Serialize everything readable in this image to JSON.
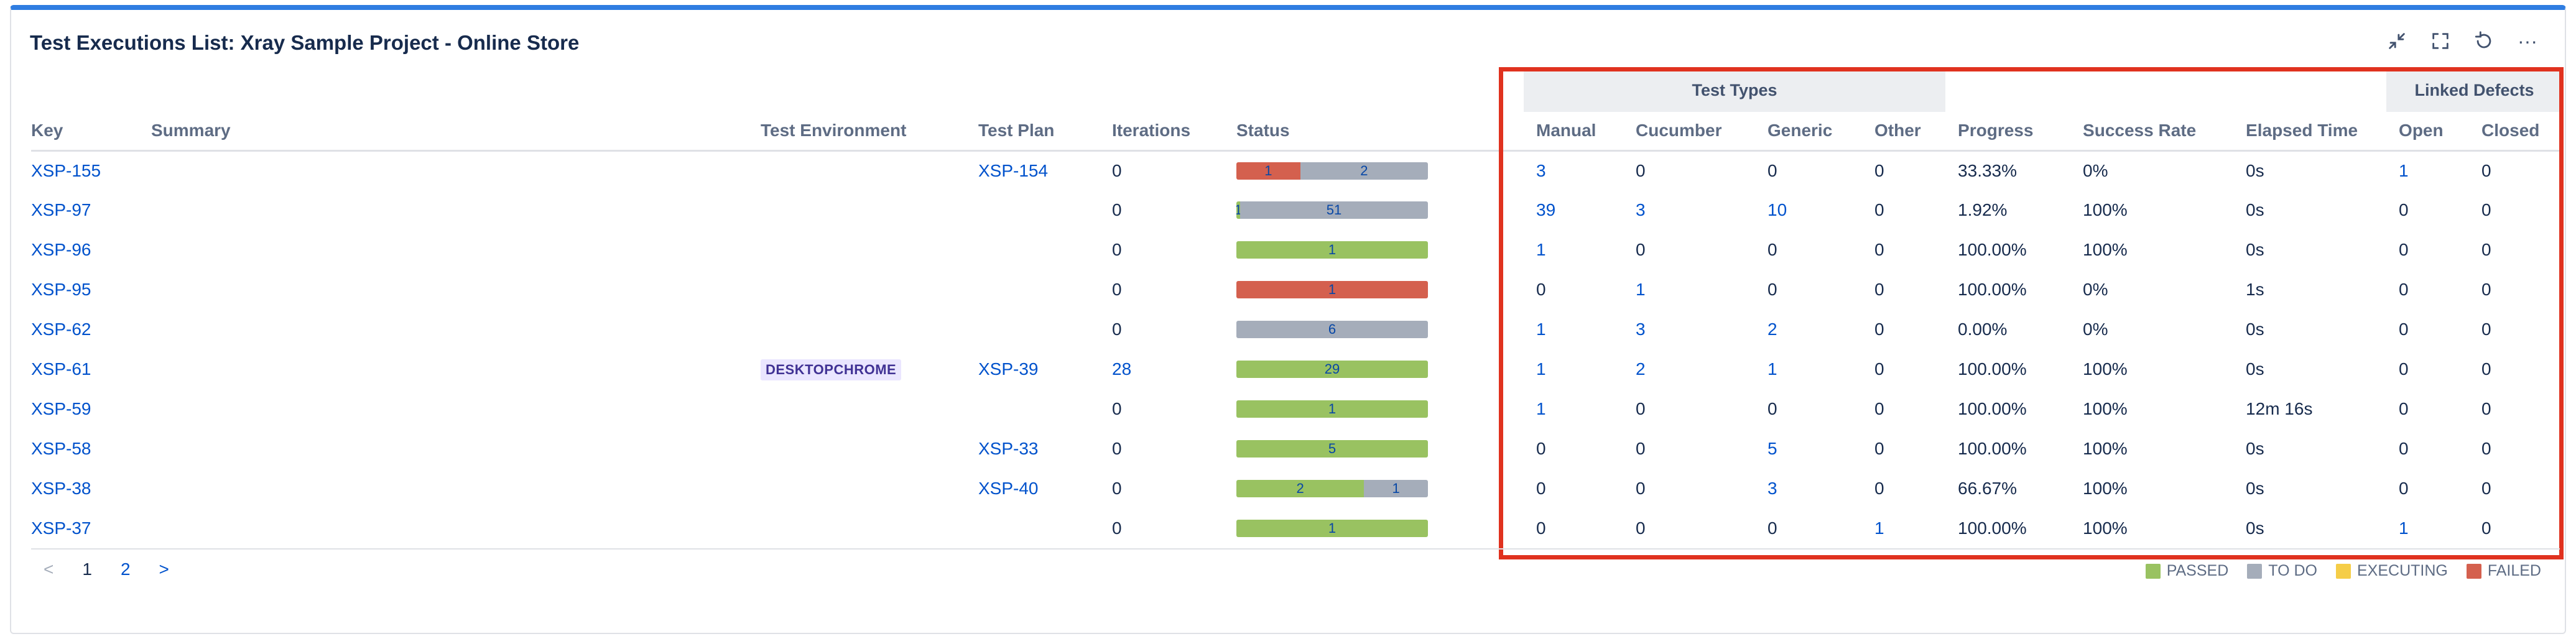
{
  "title": "Test Executions List: Xray Sample Project - Online Store",
  "toolbar": {
    "icons": [
      "collapse-icon",
      "fullscreen-icon",
      "refresh-icon",
      "more-icon"
    ],
    "more": "···"
  },
  "group_headers": {
    "test_types": "Test Types",
    "linked_defects": "Linked Defects"
  },
  "columns": {
    "key": "Key",
    "summary": "Summary",
    "test_environment": "Test Environment",
    "test_plan": "Test Plan",
    "iterations": "Iterations",
    "status": "Status",
    "manual": "Manual",
    "cucumber": "Cucumber",
    "generic": "Generic",
    "other": "Other",
    "progress": "Progress",
    "success_rate": "Success Rate",
    "elapsed_time": "Elapsed Time",
    "open": "Open",
    "closed": "Closed"
  },
  "rows": [
    {
      "key": "XSP-155",
      "summary": "",
      "env": "",
      "plan": "XSP-154",
      "iterations": "0",
      "status": [
        {
          "type": "failed",
          "count": 1
        },
        {
          "type": "todo",
          "count": 2
        }
      ],
      "manual": "3",
      "cucumber": "0",
      "generic": "0",
      "other": "0",
      "progress": "33.33%",
      "success": "0%",
      "elapsed": "0s",
      "open": "1",
      "closed": "0"
    },
    {
      "key": "XSP-97",
      "summary": "",
      "env": "",
      "plan": "",
      "iterations": "0",
      "status": [
        {
          "type": "passed",
          "count": 1
        },
        {
          "type": "todo",
          "count": 51
        }
      ],
      "manual": "39",
      "cucumber": "3",
      "generic": "10",
      "other": "0",
      "progress": "1.92%",
      "success": "100%",
      "elapsed": "0s",
      "open": "0",
      "closed": "0"
    },
    {
      "key": "XSP-96",
      "summary": "",
      "env": "",
      "plan": "",
      "iterations": "0",
      "status": [
        {
          "type": "passed",
          "count": 1
        }
      ],
      "manual": "1",
      "cucumber": "0",
      "generic": "0",
      "other": "0",
      "progress": "100.00%",
      "success": "100%",
      "elapsed": "0s",
      "open": "0",
      "closed": "0"
    },
    {
      "key": "XSP-95",
      "summary": "",
      "env": "",
      "plan": "",
      "iterations": "0",
      "status": [
        {
          "type": "failed",
          "count": 1
        }
      ],
      "manual": "0",
      "cucumber": "1",
      "generic": "0",
      "other": "0",
      "progress": "100.00%",
      "success": "0%",
      "elapsed": "1s",
      "open": "0",
      "closed": "0"
    },
    {
      "key": "XSP-62",
      "summary": "",
      "env": "",
      "plan": "",
      "iterations": "0",
      "status": [
        {
          "type": "todo",
          "count": 6
        }
      ],
      "manual": "1",
      "cucumber": "3",
      "generic": "2",
      "other": "0",
      "progress": "0.00%",
      "success": "0%",
      "elapsed": "0s",
      "open": "0",
      "closed": "0"
    },
    {
      "key": "XSP-61",
      "summary": "",
      "env": "DESKTOPCHROME",
      "plan": "XSP-39",
      "iterations": "28",
      "status": [
        {
          "type": "passed",
          "count": 29
        }
      ],
      "manual": "1",
      "cucumber": "2",
      "generic": "1",
      "other": "0",
      "progress": "100.00%",
      "success": "100%",
      "elapsed": "0s",
      "open": "0",
      "closed": "0"
    },
    {
      "key": "XSP-59",
      "summary": "",
      "env": "",
      "plan": "",
      "iterations": "0",
      "status": [
        {
          "type": "passed",
          "count": 1
        }
      ],
      "manual": "1",
      "cucumber": "0",
      "generic": "0",
      "other": "0",
      "progress": "100.00%",
      "success": "100%",
      "elapsed": "12m 16s",
      "open": "0",
      "closed": "0"
    },
    {
      "key": "XSP-58",
      "summary": "",
      "env": "",
      "plan": "XSP-33",
      "iterations": "0",
      "status": [
        {
          "type": "passed",
          "count": 5
        }
      ],
      "manual": "0",
      "cucumber": "0",
      "generic": "5",
      "other": "0",
      "progress": "100.00%",
      "success": "100%",
      "elapsed": "0s",
      "open": "0",
      "closed": "0"
    },
    {
      "key": "XSP-38",
      "summary": "",
      "env": "",
      "plan": "XSP-40",
      "iterations": "0",
      "status": [
        {
          "type": "passed",
          "count": 2
        },
        {
          "type": "todo",
          "count": 1
        }
      ],
      "manual": "0",
      "cucumber": "0",
      "generic": "3",
      "other": "0",
      "progress": "66.67%",
      "success": "100%",
      "elapsed": "0s",
      "open": "0",
      "closed": "0"
    },
    {
      "key": "XSP-37",
      "summary": "",
      "env": "",
      "plan": "",
      "iterations": "0",
      "status": [
        {
          "type": "passed",
          "count": 1
        }
      ],
      "manual": "0",
      "cucumber": "0",
      "generic": "0",
      "other": "1",
      "progress": "100.00%",
      "success": "100%",
      "elapsed": "0s",
      "open": "1",
      "closed": "0"
    }
  ],
  "pagination": {
    "prev": "<",
    "pages": [
      "1",
      "2"
    ],
    "current": "1",
    "next": ">"
  },
  "legend": [
    {
      "label": "PASSED",
      "color": "#99c261"
    },
    {
      "label": "TO DO",
      "color": "#a5adba"
    },
    {
      "label": "EXECUTING",
      "color": "#f5cd47"
    },
    {
      "label": "FAILED",
      "color": "#d4604e"
    }
  ],
  "colors": {
    "accent": "#2f7de1",
    "highlight": "#e0321f",
    "link": "#0052cc",
    "passed": "#99c261",
    "todo": "#a5adba",
    "executing": "#f5cd47",
    "failed": "#d4604e"
  }
}
